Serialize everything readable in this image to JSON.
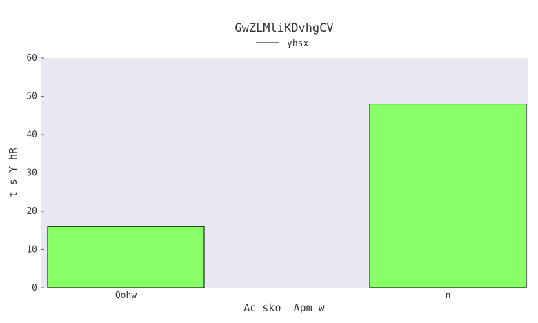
{
  "chart_data": {
    "type": "bar",
    "title": "GwZLMliKDvhgCV",
    "xlabel": "Ac sko  Apm w",
    "ylabel": "t s Y hR",
    "categories": [
      "Qohw",
      "n"
    ],
    "series": [
      {
        "name": "yhsx",
        "values": [
          16,
          48
        ],
        "error": [
          1.6,
          4.8
        ],
        "color": "#88ff66"
      }
    ],
    "ylim": [
      0,
      60
    ],
    "yticks": [
      0,
      10,
      20,
      30,
      40,
      50,
      60
    ],
    "grid": false,
    "legend": "top-center",
    "background_color": "#e8e8f2"
  }
}
